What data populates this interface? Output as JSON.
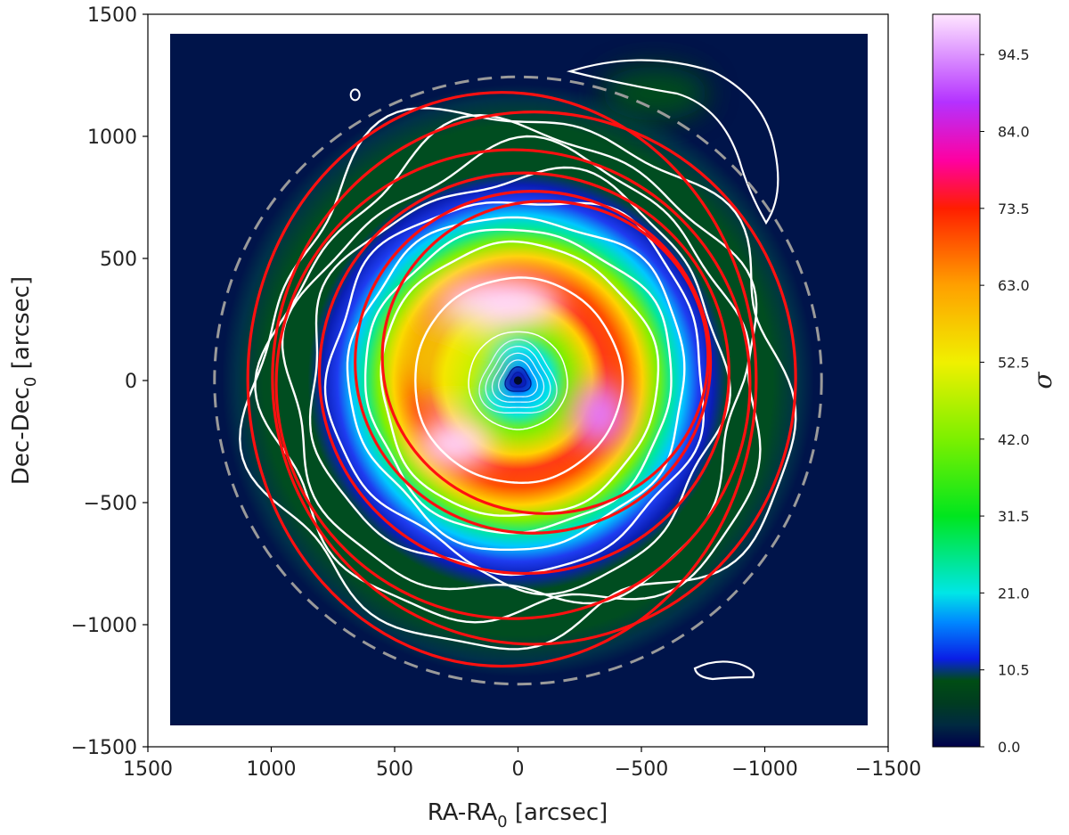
{
  "chart_data": {
    "type": "heatmap",
    "title": "",
    "xlabel": {
      "base": "RA-RA",
      "sub": "0",
      "unit": " [arcsec]"
    },
    "ylabel": {
      "base": "Dec-Dec",
      "sub": "0",
      "unit": " [arcsec]"
    },
    "xlim": [
      1500,
      -1500
    ],
    "ylim": [
      -1500,
      1500
    ],
    "x_ticks": [
      1500,
      1000,
      500,
      0,
      -500,
      -1000,
      -1500
    ],
    "x_tick_labels": [
      "1500",
      "1000",
      "500",
      "0",
      "−500",
      "−1000",
      "−1500"
    ],
    "y_ticks": [
      1500,
      1000,
      500,
      0,
      -500,
      -1000,
      -1500
    ],
    "y_tick_labels": [
      "1500",
      "1000",
      "500",
      "0",
      "−500",
      "−1000",
      "−1500"
    ],
    "map_extent": [
      -1420,
      1420
    ],
    "colorbar": {
      "label": "σ",
      "range": [
        0,
        100
      ],
      "ticks": [
        0.0,
        10.5,
        21.0,
        31.5,
        42.0,
        52.5,
        63.0,
        73.5,
        84.0,
        94.5
      ],
      "tick_labels": [
        "0.0",
        "10.5",
        "21.0",
        "31.5",
        "42.0",
        "52.5",
        "63.0",
        "73.5",
        "84.0",
        "94.5"
      ],
      "colors": [
        "#00004a",
        "#002a40",
        "#003c20",
        "#004d14",
        "#0a1ee6",
        "#0088ff",
        "#00e6e6",
        "#00e61e",
        "#7cf000",
        "#f0f000",
        "#ffa000",
        "#ff1e00",
        "#ff00a0",
        "#b432ff",
        "#ffe6ff"
      ],
      "color_stops": [
        0,
        3,
        6,
        9,
        12,
        17,
        21,
        31.5,
        42,
        52.5,
        63,
        73.5,
        80,
        88,
        100
      ]
    },
    "dashed_circle": {
      "radius": 1230,
      "color": "#9a9a9a"
    },
    "red_ellipses": [
      {
        "cx": -110,
        "cy": 95,
        "rx": 660,
        "ry": 640
      },
      {
        "cx": -60,
        "cy": 75,
        "rx": 720,
        "ry": 700
      },
      {
        "cx": -25,
        "cy": 30,
        "rx": 830,
        "ry": 820
      },
      {
        "cx": 20,
        "cy": -15,
        "rx": 960,
        "ry": 960
      },
      {
        "cx": -65,
        "cy": 10,
        "rx": 1060,
        "ry": 1090
      },
      {
        "cx": 65,
        "cy": 5,
        "rx": 1030,
        "ry": 1175
      }
    ],
    "white_contours_radii": [
      200,
      420,
      560,
      620,
      680,
      760,
      840,
      920,
      1000,
      1080
    ],
    "inner_contours_radii": [
      30,
      50,
      75,
      100,
      125,
      150
    ]
  }
}
